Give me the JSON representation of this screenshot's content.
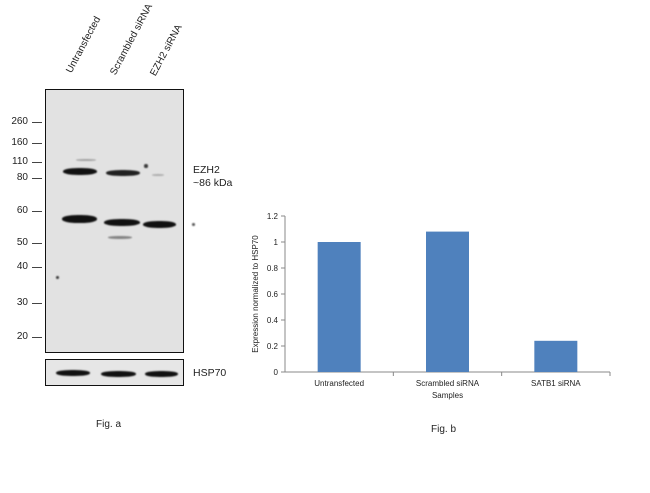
{
  "fig_a": {
    "lanes": [
      "Untransfected",
      "Scrambled siRNA",
      "EZH2 siRNA"
    ],
    "markers": [
      "260",
      "160",
      "110",
      "80",
      "60",
      "50",
      "40",
      "30",
      "20"
    ],
    "target_label_1": "EZH2",
    "target_label_2": "~86 kDa",
    "loading_label": "HSP70",
    "caption": "Fig. a"
  },
  "fig_b": {
    "caption": "Fig. b"
  },
  "chart_data": {
    "type": "bar",
    "categories": [
      "Untransfected",
      "Scrambled siRNA",
      "SATB1 siRNA"
    ],
    "values": [
      1.0,
      1.08,
      0.24
    ],
    "title": "",
    "xlabel": "Samples",
    "ylabel": "Expression normalized to HSP70",
    "ylim": [
      0,
      1.2
    ],
    "yticks": [
      "0",
      "0.2",
      "0.4",
      "0.6",
      "0.8",
      "1",
      "1.2"
    ],
    "bar_color": "#4f81bd",
    "grid": false
  }
}
